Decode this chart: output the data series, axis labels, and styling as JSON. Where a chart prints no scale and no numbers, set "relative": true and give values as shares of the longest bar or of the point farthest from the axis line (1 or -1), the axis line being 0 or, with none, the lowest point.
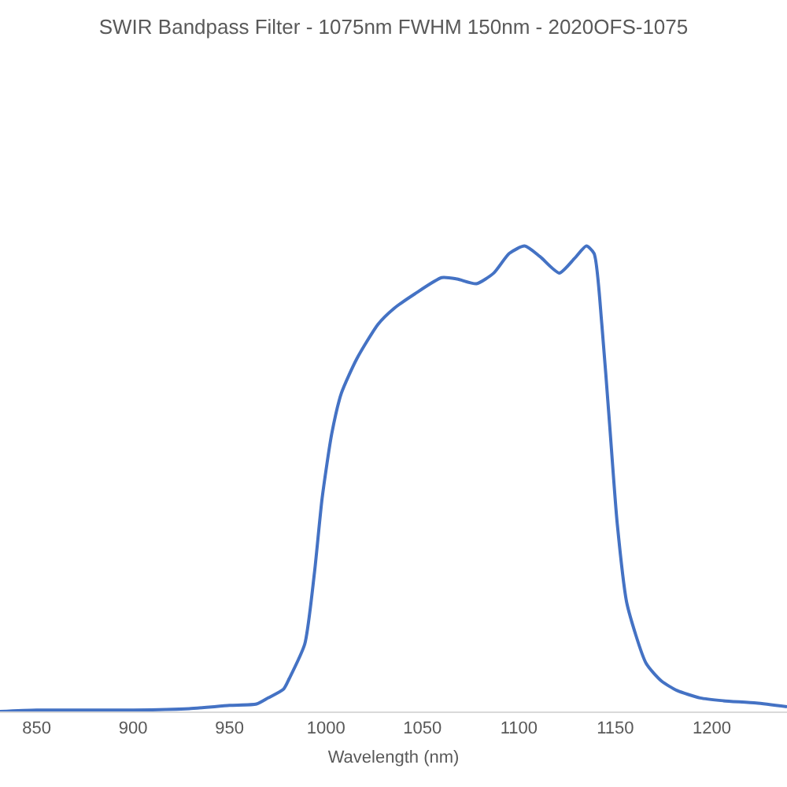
{
  "chart_data": {
    "type": "line",
    "title": "SWIR Bandpass Filter - 1075nm FWHM 150nm - 2020OFS-1075",
    "xlabel": "Wavelength (nm)",
    "relative": true,
    "x": [
      831,
      850,
      900,
      929,
      950,
      964,
      970,
      978,
      981,
      989,
      994,
      998,
      1003,
      1008,
      1016,
      1027,
      1035,
      1046,
      1060,
      1068,
      1078,
      1087,
      1095,
      1103,
      1111,
      1121,
      1129,
      1135,
      1139,
      1143,
      1147,
      1151,
      1156,
      1166,
      1174,
      1182,
      1194,
      1206,
      1223,
      1239
    ],
    "series": [
      {
        "color": "#4472c4",
        "values": [
          0,
          0.003,
          0.003,
          0.006,
          0.013,
          0.016,
          0.029,
          0.048,
          0.071,
          0.145,
          0.297,
          0.458,
          0.597,
          0.684,
          0.758,
          0.832,
          0.865,
          0.897,
          0.932,
          0.929,
          0.919,
          0.942,
          0.984,
          1,
          0.977,
          0.942,
          0.974,
          1,
          0.984,
          0.832,
          0.619,
          0.403,
          0.232,
          0.103,
          0.065,
          0.045,
          0.029,
          0.023,
          0.018,
          0.01
        ]
      }
    ],
    "xlim": [
      831,
      1239
    ],
    "xticks": [
      850,
      900,
      950,
      1000,
      1050,
      1100,
      1150,
      1200
    ],
    "line_style": "solid",
    "marker": "none"
  }
}
